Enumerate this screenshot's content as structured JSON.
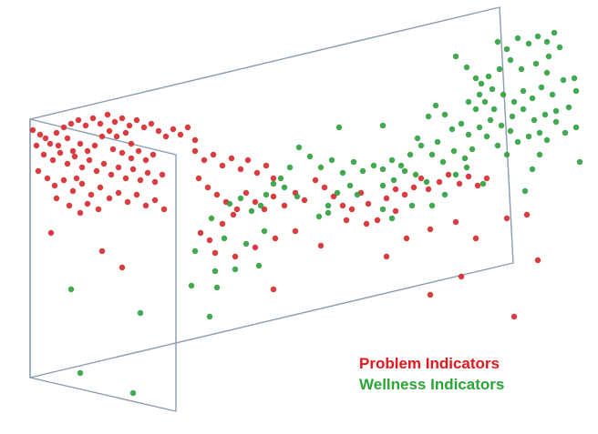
{
  "colors": {
    "problem": "#d9262b",
    "wellness": "#2e9e3c",
    "frame": "#8a9ab0",
    "legend_problem": "#e3161b",
    "legend_wellness": "#2aa637"
  },
  "legend": {
    "problem_label": "Problem Indicators",
    "wellness_label": "Wellness Indicators"
  }
}
